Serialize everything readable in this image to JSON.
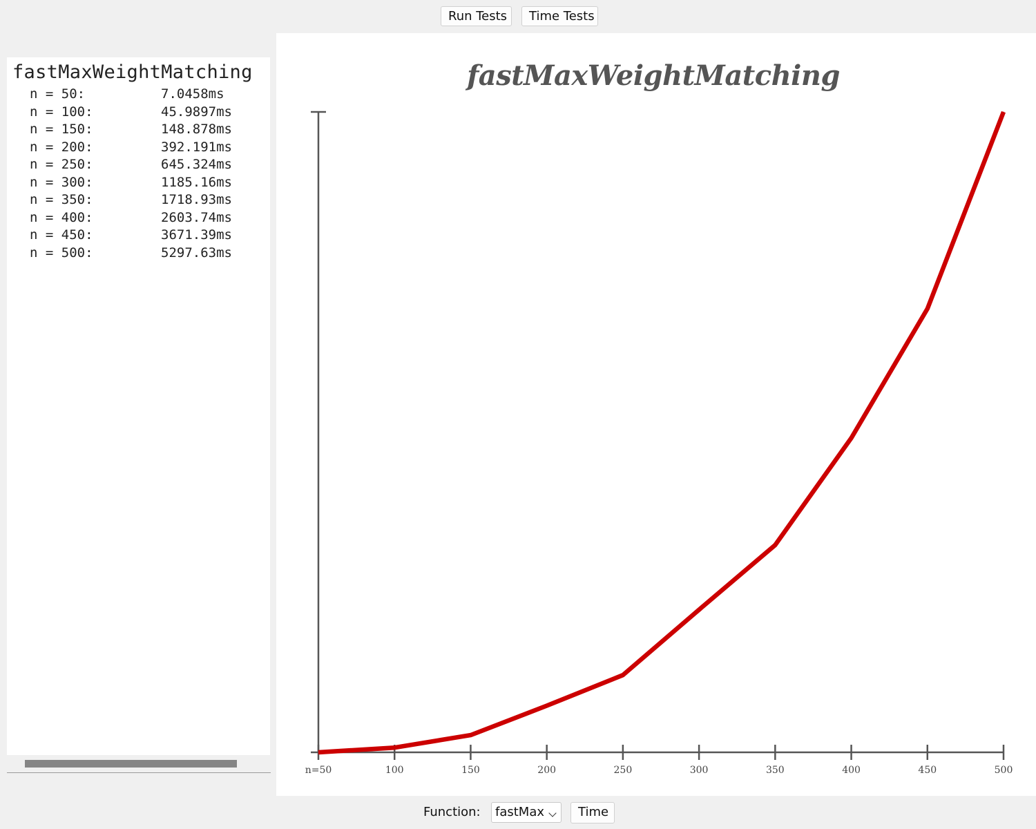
{
  "toolbar": {
    "run_tests_label": "Run Tests",
    "time_tests_label": "Time Tests"
  },
  "results": {
    "title": "fastMaxWeightMatching",
    "rows": [
      {
        "n": "n = 50:",
        "time": "7.0458ms"
      },
      {
        "n": "n = 100:",
        "time": "45.9897ms"
      },
      {
        "n": "n = 150:",
        "time": "148.878ms"
      },
      {
        "n": "n = 200:",
        "time": "392.191ms"
      },
      {
        "n": "n = 250:",
        "time": "645.324ms"
      },
      {
        "n": "n = 300:",
        "time": "1185.16ms"
      },
      {
        "n": "n = 350:",
        "time": "1718.93ms"
      },
      {
        "n": "n = 400:",
        "time": "2603.74ms"
      },
      {
        "n": "n = 450:",
        "time": "3671.39ms"
      },
      {
        "n": "n = 500:",
        "time": "5297.63ms"
      }
    ]
  },
  "chart_data": {
    "type": "line",
    "title": "fastMaxWeightMatching",
    "xlabel": "",
    "ylabel": "",
    "x": [
      50,
      100,
      150,
      200,
      250,
      300,
      350,
      400,
      450,
      500
    ],
    "x_tick_labels": [
      "n=50",
      "100",
      "150",
      "200",
      "250",
      "300",
      "350",
      "400",
      "450",
      "500"
    ],
    "series": [
      {
        "values": [
          7.0458,
          45.9897,
          148.878,
          392.191,
          645.324,
          1185.16,
          1718.93,
          2603.74,
          3671.39,
          5297.63
        ],
        "color": "#cc0000"
      }
    ],
    "xlim": [
      50,
      500
    ],
    "ylim": [
      7.0458,
      5297.63
    ],
    "grid": false,
    "axis_color": "#555555"
  },
  "footer": {
    "function_label": "Function:",
    "function_selected": "fastMax",
    "time_label": "Time"
  }
}
